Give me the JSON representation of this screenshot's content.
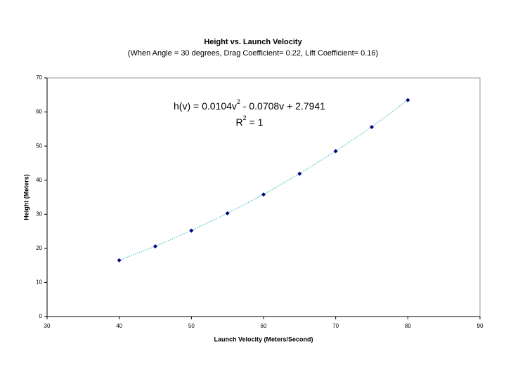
{
  "chart_data": {
    "type": "scatter",
    "title": "Height vs. Launch Velocity",
    "subtitle": "(When Angle = 30 degrees, Drag Coefficient= 0.22, Lift Coefficient= 0.16)",
    "x_label": "Launch Velocity (Meters/Second)",
    "y_label": "Height (Meters)",
    "equation": [
      "h(v) = 0.0104v",
      "2",
      " - 0.0708v + 2.7941"
    ],
    "r_squared": [
      "R",
      "2",
      " = 1"
    ],
    "x": [
      40,
      45,
      50,
      55,
      60,
      65,
      70,
      75,
      80
    ],
    "series": [
      {
        "color": "#000080",
        "trendline_color": "#5ac8c8",
        "values": [
          16.5,
          20.6,
          25.2,
          30.3,
          35.8,
          41.9,
          48.5,
          55.6,
          63.5
        ]
      }
    ],
    "xlim": [
      30,
      90
    ],
    "xticks": [
      30,
      40,
      50,
      60,
      70,
      80,
      90
    ],
    "ylim": [
      0,
      70
    ],
    "yticks": [
      0,
      10,
      20,
      30,
      40,
      50,
      60,
      70
    ],
    "grid": false
  }
}
